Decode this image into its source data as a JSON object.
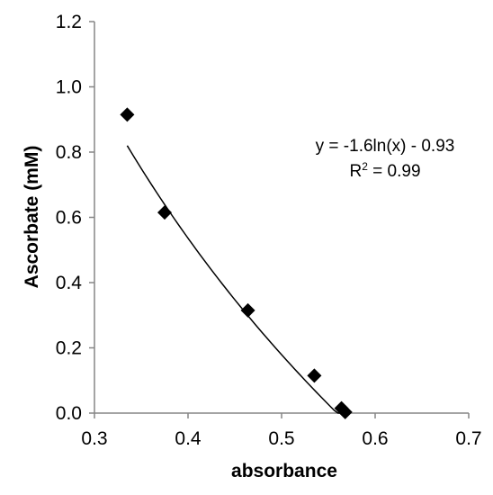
{
  "chart_data": {
    "type": "scatter",
    "title": "",
    "xlabel": "absorbance",
    "ylabel": "Ascorbate  (mM)",
    "xlim": [
      0.3,
      0.7
    ],
    "ylim": [
      0.0,
      1.2
    ],
    "x_ticks": [
      "0.3",
      "0.4",
      "0.5",
      "0.6",
      "0.7"
    ],
    "y_ticks": [
      "0.0",
      "0.2",
      "0.4",
      "0.6",
      "0.8",
      "1.0",
      "1.2"
    ],
    "grid": false,
    "legend": "none",
    "marker": "diamond",
    "marker_color": "#000000",
    "series": [
      {
        "x": [
          0.335,
          0.375,
          0.464,
          0.535,
          0.564,
          0.568
        ],
        "y": [
          0.915,
          0.615,
          0.315,
          0.115,
          0.015,
          0.003
        ]
      }
    ],
    "trendline": {
      "type": "logarithmic",
      "a": -1.6,
      "b": -0.93,
      "x_range": [
        0.335,
        0.568
      ],
      "equation": "y = -1.6ln(x) - 0.93",
      "r2_prefix": "R",
      "r2_exp": "2",
      "r2_suffix": " = 0.99"
    }
  }
}
